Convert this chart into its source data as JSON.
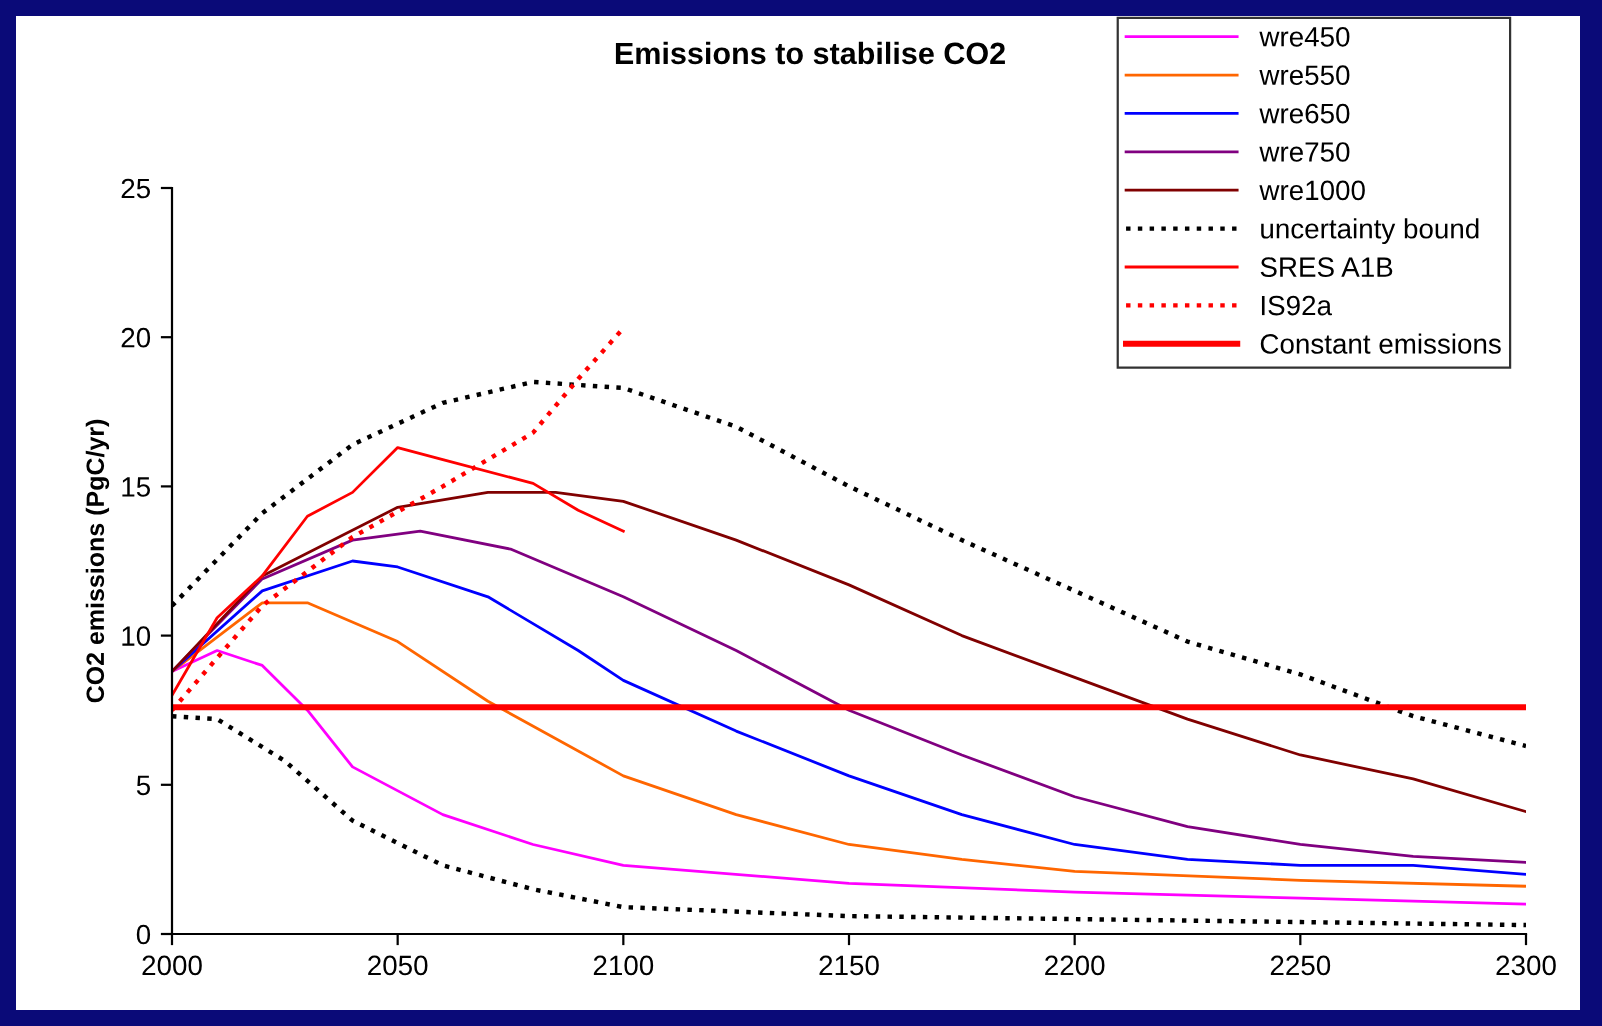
{
  "chart_data": {
    "type": "line",
    "title": "Emissions to stabilise CO2",
    "ylabel": "CO2 emissions (PgC/yr)",
    "xlim": [
      2000,
      2300
    ],
    "xticks": [
      2000,
      2050,
      2100,
      2150,
      2200,
      2250,
      2300
    ],
    "ylim": [
      0,
      25
    ],
    "yticks": [
      0,
      5,
      10,
      15,
      20,
      25
    ],
    "grid": false,
    "legend": "top right",
    "marker": "none",
    "series": [
      {
        "name": "wre450",
        "color": "#ff00ff",
        "x": [
          2000,
          2010,
          2020,
          2030,
          2040,
          2060,
          2080,
          2100,
          2150,
          2200,
          2250,
          2300
        ],
        "values": [
          8.8,
          9.5,
          9.0,
          7.5,
          5.6,
          4.0,
          3.0,
          2.3,
          1.7,
          1.4,
          1.2,
          1.0
        ]
      },
      {
        "name": "wre550",
        "color": "#ff6600",
        "x": [
          2000,
          2020,
          2030,
          2050,
          2070,
          2100,
          2125,
          2150,
          2175,
          2200,
          2250,
          2300
        ],
        "values": [
          8.8,
          11.1,
          11.1,
          9.8,
          7.8,
          5.3,
          4.0,
          3.0,
          2.5,
          2.1,
          1.8,
          1.6
        ]
      },
      {
        "name": "wre650",
        "color": "#0000ff",
        "x": [
          2000,
          2020,
          2040,
          2050,
          2070,
          2090,
          2100,
          2125,
          2150,
          2175,
          2200,
          2225,
          2250,
          2275,
          2300
        ],
        "values": [
          8.8,
          11.5,
          12.5,
          12.3,
          11.3,
          9.5,
          8.5,
          6.8,
          5.3,
          4.0,
          3.0,
          2.5,
          2.3,
          2.3,
          2.0
        ]
      },
      {
        "name": "wre750",
        "color": "#800080",
        "x": [
          2000,
          2020,
          2040,
          2055,
          2075,
          2100,
          2125,
          2150,
          2175,
          2200,
          2225,
          2250,
          2275,
          2300
        ],
        "values": [
          8.8,
          11.9,
          13.2,
          13.5,
          12.9,
          11.3,
          9.5,
          7.5,
          6.0,
          4.6,
          3.6,
          3.0,
          2.6,
          2.4
        ]
      },
      {
        "name": "wre1000",
        "color": "#800000",
        "x": [
          2000,
          2020,
          2050,
          2070,
          2085,
          2100,
          2125,
          2150,
          2175,
          2200,
          2225,
          2250,
          2275,
          2300
        ],
        "values": [
          8.8,
          12.0,
          14.3,
          14.8,
          14.8,
          14.5,
          13.2,
          11.7,
          10.0,
          8.6,
          7.2,
          6.0,
          5.2,
          4.1
        ]
      },
      {
        "name": "uncertainty bound",
        "color": "#000000",
        "line_style": "dotted",
        "x": [
          2000,
          2020,
          2040,
          2060,
          2080,
          2100,
          2125,
          2150,
          2175,
          2200,
          2225,
          2250,
          2275,
          2300
        ],
        "values": [
          11.0,
          14.1,
          16.4,
          17.8,
          18.5,
          18.3,
          17.0,
          15.0,
          13.2,
          11.5,
          9.8,
          8.7,
          7.3,
          6.3
        ]
      },
      {
        "color": "#000000",
        "line_style": "dotted",
        "x": [
          2000,
          2010,
          2025,
          2040,
          2060,
          2080,
          2100,
          2150,
          2200,
          2250,
          2300
        ],
        "values": [
          7.3,
          7.2,
          5.8,
          3.8,
          2.3,
          1.5,
          0.9,
          0.6,
          0.5,
          0.4,
          0.3
        ]
      },
      {
        "name": "SRES A1B",
        "color": "#ff0000",
        "x": [
          2000,
          2010,
          2020,
          2030,
          2040,
          2050,
          2060,
          2080,
          2090,
          2100
        ],
        "values": [
          8.0,
          10.6,
          12.0,
          14.0,
          14.8,
          16.3,
          15.9,
          15.1,
          14.2,
          13.5
        ]
      },
      {
        "name": "IS92a",
        "color": "#ff0000",
        "line_style": "dotted",
        "x": [
          2000,
          2020,
          2040,
          2060,
          2080,
          2090,
          2100
        ],
        "values": [
          7.5,
          11.0,
          13.3,
          15.0,
          16.8,
          18.6,
          20.3
        ]
      }
    ],
    "ref_lines": [
      {
        "axis": "y",
        "value": 7.6,
        "label": "Constant emissions",
        "color": "#ff0000"
      }
    ]
  }
}
